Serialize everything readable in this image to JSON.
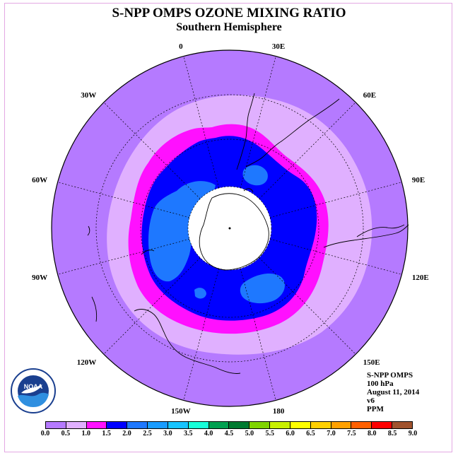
{
  "title": "S-NPP OMPS OZONE MIXING RATIO",
  "subtitle": "Southern Hemisphere",
  "longitude_labels": [
    {
      "text": "90W",
      "lon": -90
    },
    {
      "text": "60W",
      "lon": -60
    },
    {
      "text": "30W",
      "lon": -30
    },
    {
      "text": "0",
      "lon": 0
    },
    {
      "text": "30E",
      "lon": 30
    },
    {
      "text": "60E",
      "lon": 60
    },
    {
      "text": "90E",
      "lon": 90
    },
    {
      "text": "120E",
      "lon": 120
    },
    {
      "text": "150E",
      "lon": 150
    },
    {
      "text": "180",
      "lon": 180
    },
    {
      "text": "150W",
      "lon": -150
    },
    {
      "text": "120W",
      "lon": -120
    }
  ],
  "info": {
    "instrument": "S-NPP OMPS",
    "level": "100 hPa",
    "date": "August 11, 2014",
    "version": "v6",
    "units": "PPM"
  },
  "logo_text": "NOAA",
  "colorbar": {
    "ticks": [
      "0.0",
      "0.5",
      "1.0",
      "1.5",
      "2.0",
      "2.5",
      "3.0",
      "3.5",
      "4.0",
      "4.5",
      "5.0",
      "5.5",
      "6.0",
      "6.5",
      "7.0",
      "7.5",
      "8.0",
      "8.5",
      "9.0"
    ],
    "colors": [
      "#b57aff",
      "#e0b0ff",
      "#ff10ff",
      "#0000ff",
      "#1e78ff",
      "#199cff",
      "#17c4ff",
      "#17ffd9",
      "#00a050",
      "#007a30",
      "#7fd400",
      "#c8f000",
      "#ffff00",
      "#ffd000",
      "#ffa000",
      "#ff6000",
      "#ff0000",
      "#a0522d"
    ]
  }
}
